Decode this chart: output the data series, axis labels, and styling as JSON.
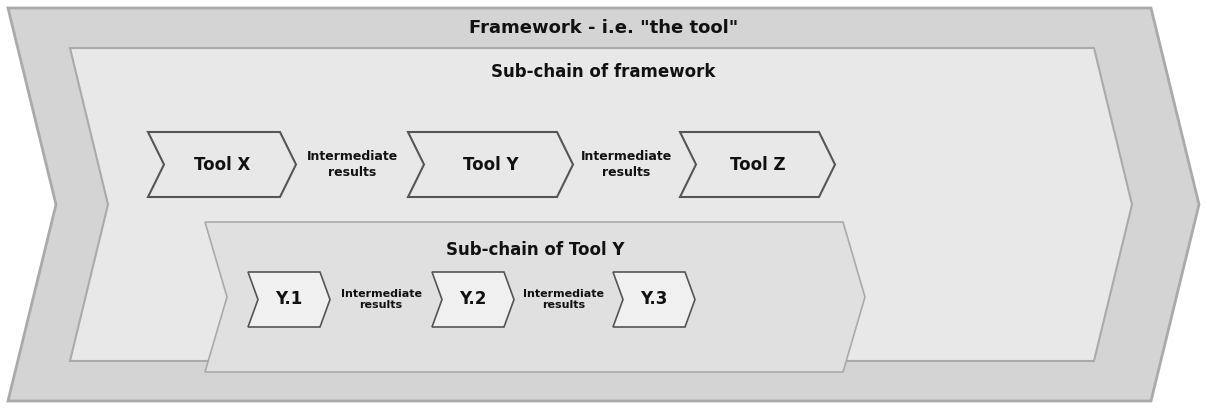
{
  "title": "Framework - i.e. \"the tool\"",
  "subchain_label": "Sub-chain of framework",
  "subchain_y_label": "Sub-chain of Tool Y",
  "tools_top": [
    "Tool X",
    "Tool Y",
    "Tool Z"
  ],
  "tools_bottom": [
    "Y.1",
    "Y.2",
    "Y.3"
  ],
  "intermediate_label": "Intermediate\nresults",
  "text_color": "#111111",
  "title_fontsize": 13,
  "subchain_fontsize": 12,
  "tool_fontsize": 12,
  "inter_fontsize": 9,
  "outer_face": "#d4d4d4",
  "outer_edge": "#aaaaaa",
  "inner_face": "#e8e8e8",
  "inner_edge": "#aaaaaa",
  "subY_face": "#e0e0e0",
  "subY_edge": "#aaaaaa",
  "tool_face": "#e8e8e8",
  "tool_edge": "#555555",
  "ytool_face": "#f0f0f0",
  "ytool_edge": "#555555"
}
